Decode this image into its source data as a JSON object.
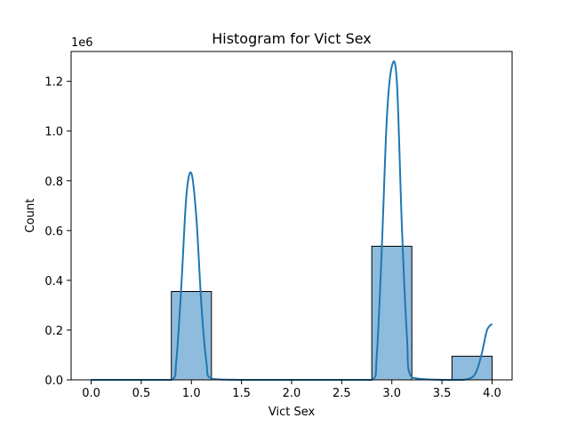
{
  "chart_data": {
    "type": "bar",
    "title": "Histogram for Vict Sex",
    "xlabel": "Vict Sex",
    "ylabel": "Count",
    "y_offset_text": "1e6",
    "xlim": [
      -0.2,
      4.2
    ],
    "ylim": [
      0,
      1320000
    ],
    "xticks": [
      0.0,
      0.5,
      1.0,
      1.5,
      2.0,
      2.5,
      3.0,
      3.5,
      4.0
    ],
    "xtick_labels": [
      "0.0",
      "0.5",
      "1.0",
      "1.5",
      "2.0",
      "2.5",
      "3.0",
      "3.5",
      "4.0"
    ],
    "yticks": [
      0,
      200000,
      400000,
      600000,
      800000,
      1000000,
      1200000
    ],
    "ytick_labels": [
      "0.0",
      "0.2",
      "0.4",
      "0.6",
      "0.8",
      "1.0",
      "1.2"
    ],
    "bin_edges": [
      0.0,
      0.4,
      0.8,
      1.2,
      1.6,
      2.0,
      2.4,
      2.8,
      3.2,
      3.6,
      4.0
    ],
    "values": [
      0,
      0,
      355000,
      0,
      0,
      0,
      0,
      537000,
      0,
      95000
    ],
    "kde": {
      "x": [
        0.0,
        0.5,
        0.8,
        0.85,
        0.9,
        0.95,
        1.0,
        1.05,
        1.1,
        1.15,
        1.2,
        1.5,
        2.0,
        2.5,
        2.8,
        2.85,
        2.9,
        2.95,
        3.0,
        3.05,
        3.1,
        3.15,
        3.2,
        3.5,
        3.7,
        3.8,
        3.85,
        3.9,
        3.95,
        4.0
      ],
      "y": [
        0,
        0,
        0,
        80000,
        380000,
        740000,
        830000,
        650000,
        300000,
        70000,
        5000,
        0,
        0,
        0,
        0,
        100000,
        530000,
        1050000,
        1260000,
        1200000,
        620000,
        180000,
        10000,
        0,
        0,
        10000,
        40000,
        110000,
        200000,
        225000
      ]
    },
    "grid": false,
    "colors": {
      "bar_fill": "#8fbcdc",
      "bar_edge": "#000000",
      "kde_line": "#1f77b4"
    }
  }
}
